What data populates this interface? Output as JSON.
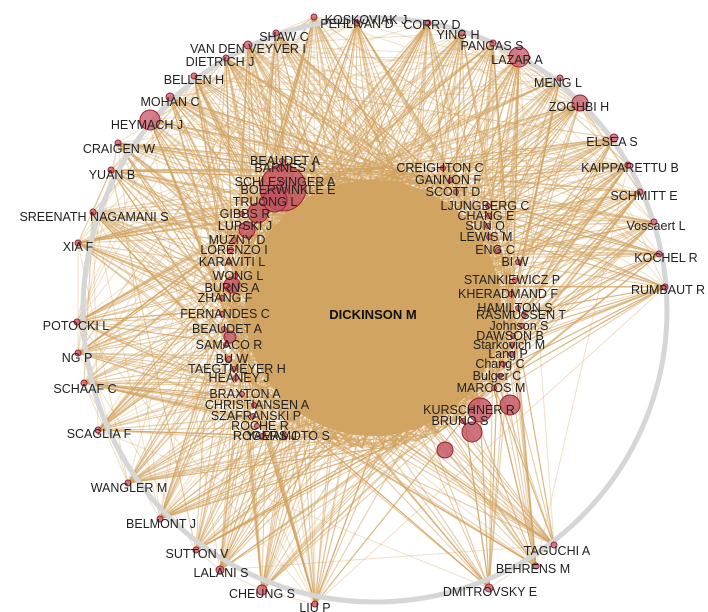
{
  "colors": {
    "edge": "#d2a35e",
    "inner_fill": "#d1a462",
    "node_fill": "#c96270",
    "node_stroke": "#9b2333",
    "hub_fill": "#c0505e",
    "outer_ring": "#d6d6d6",
    "label": "#222222"
  },
  "center_author": "DICKINSON M",
  "outer_authors": [
    "KOSKOVIAK J",
    "PEHLIVAN D",
    "CORRY D",
    "YING H",
    "PANGAS S",
    "LAZAR A",
    "MENG L",
    "ZOGHBI H",
    "ELSEA S",
    "KAIPPARETTU B",
    "SCHMITT E",
    "Vossaert L",
    "KOCHEL R",
    "RUMBAUT R",
    "TAGUCHI A",
    "BEHRENS M",
    "DMITROVSKY E",
    "LIU P",
    "CHEUNG S",
    "LALANI S",
    "SUTTON V",
    "BELMONT J",
    "WANGLER M",
    "SCAGLIA F",
    "SCHAAF C",
    "NG P",
    "POTOCKI L",
    "XIA F",
    "SREENATH NAGAMANI S",
    "YUAN B",
    "CRAIGEN W",
    "HEYMACH J",
    "MOHAN C",
    "BELLEN H",
    "DIETRICH J",
    "VAN DEN VEYVER I",
    "SHAW C"
  ],
  "inner_left_authors": [
    "BEAUDET A",
    "BARNES J",
    "SCHLESINGER A",
    "BOERWINKLE E",
    "TRUONG L",
    "GIBBS R",
    "LUPSKI J",
    "MUZNY D",
    "LORENZO I",
    "KARAVITI L",
    "WONG L",
    "BURNS A",
    "ZHANG F",
    "FERNANDES C",
    "BEAUDET A",
    "SAMACO R",
    "BU W",
    "TAEGTMEYER H",
    "HEANEY J",
    "BRAXTON A",
    "CHRISTIANSEN A",
    "SZAFRANSKI P",
    "ROCHE R",
    "ROGERS J",
    "YAMAMOTO S"
  ],
  "inner_right_authors": [
    "CREIGHTON C",
    "GANNON F",
    "SCOTT D",
    "LJUNGBERG C",
    "CHANG E",
    "SUN Q",
    "LEWIS M",
    "ENG C",
    "BI W",
    "STANKIEWICZ P",
    "KHERADMAND F",
    "HAMILTON S",
    "RASMUSSEN T",
    "Johnson S",
    "DAWSON B",
    "Starkovich M",
    "Lang P",
    "Chang C",
    "Bulger C",
    "MARCOS M",
    "KURSCHNER R",
    "BRUNO S"
  ]
}
